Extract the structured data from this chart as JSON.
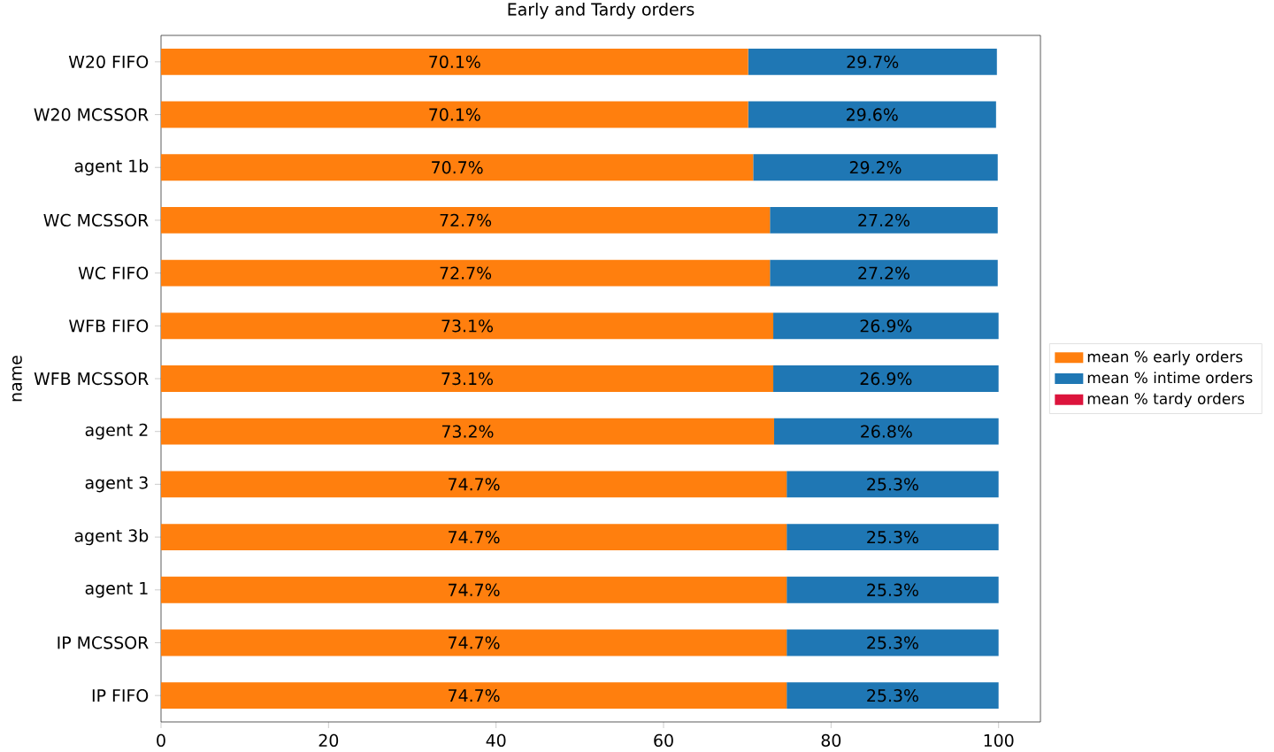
{
  "chart_data": {
    "type": "bar",
    "orientation": "horizontal",
    "stacked": true,
    "title": "Early and Tardy orders",
    "ylabel": "name",
    "categories": [
      "W20 FIFO",
      "W20 MCSSOR",
      "agent 1b",
      "WC MCSSOR",
      "WC FIFO",
      "WFB FIFO",
      "WFB MCSSOR",
      "agent 2",
      "agent 3",
      "agent 3b",
      "agent 1",
      "IP MCSSOR",
      "IP FIFO"
    ],
    "series": [
      {
        "name": "mean % early orders",
        "color": "#ff7f0e",
        "values": [
          70.1,
          70.1,
          70.7,
          72.7,
          72.7,
          73.1,
          73.1,
          73.2,
          74.7,
          74.7,
          74.7,
          74.7,
          74.7
        ],
        "value_labels": [
          "70.1%",
          "70.1%",
          "70.7%",
          "72.7%",
          "72.7%",
          "73.1%",
          "73.1%",
          "73.2%",
          "74.7%",
          "74.7%",
          "74.7%",
          "74.7%",
          "74.7%"
        ]
      },
      {
        "name": "mean % intime orders",
        "color": "#1f77b4",
        "values": [
          29.7,
          29.6,
          29.2,
          27.2,
          27.2,
          26.9,
          26.9,
          26.8,
          25.3,
          25.3,
          25.3,
          25.3,
          25.3
        ],
        "value_labels": [
          "29.7%",
          "29.6%",
          "29.2%",
          "27.2%",
          "27.2%",
          "26.9%",
          "26.9%",
          "26.8%",
          "25.3%",
          "25.3%",
          "25.3%",
          "25.3%",
          "25.3%"
        ]
      },
      {
        "name": "mean % tardy orders",
        "color": "#dc143c",
        "values": [
          0,
          0,
          0,
          0,
          0,
          0,
          0,
          0,
          0,
          0,
          0,
          0,
          0
        ]
      }
    ],
    "xlim": [
      0,
      105
    ],
    "xticks": [
      0,
      20,
      40,
      60,
      80,
      100
    ],
    "legend": "right"
  }
}
